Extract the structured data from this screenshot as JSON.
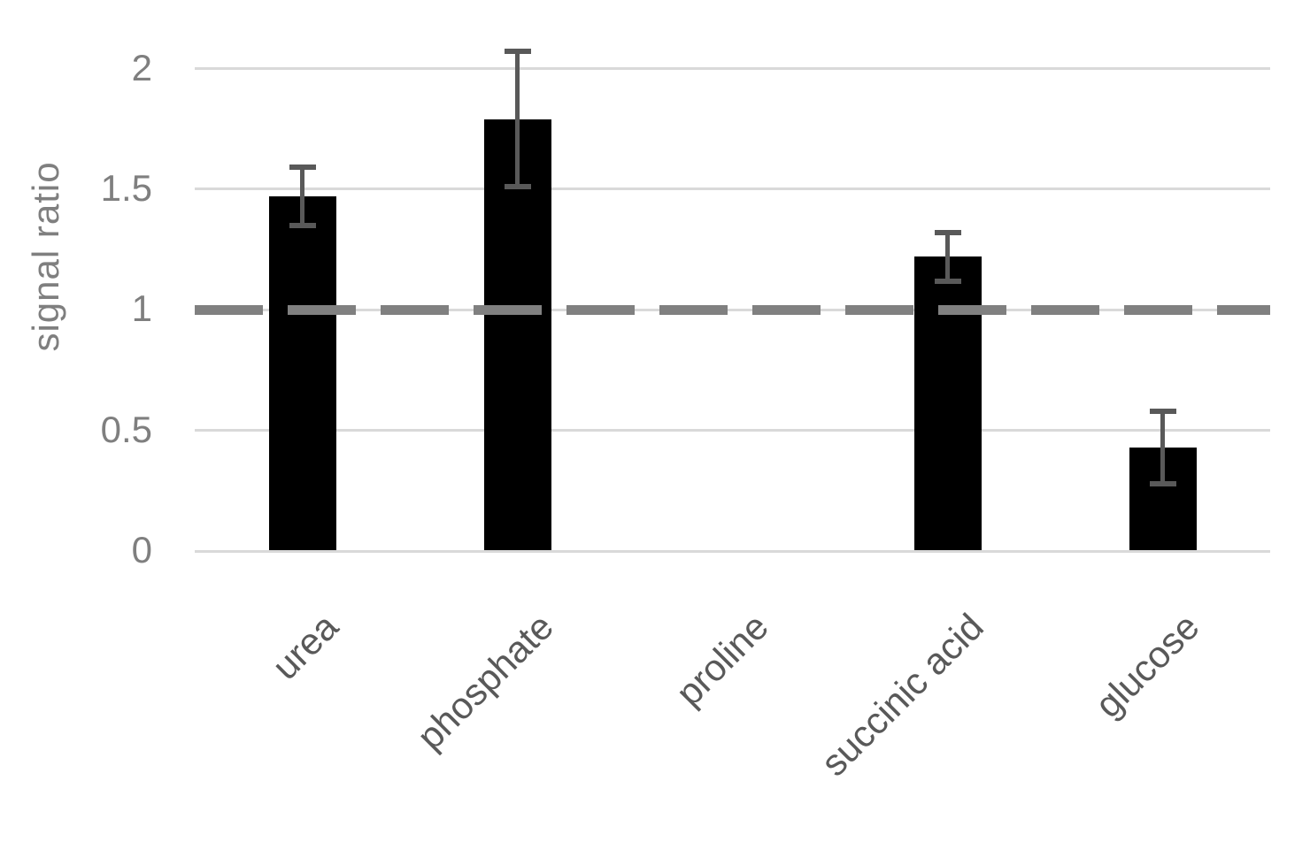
{
  "chart_data": {
    "type": "bar",
    "title": "",
    "xlabel": "",
    "ylabel": "signal ratio",
    "categories": [
      "urea",
      "phosphate",
      "proline",
      "succinic acid",
      "glucose"
    ],
    "series": [
      {
        "name": "signal ratio",
        "values": [
          1.47,
          1.79,
          null,
          1.22,
          0.43
        ],
        "errors": [
          0.12,
          0.28,
          null,
          0.1,
          0.15
        ]
      }
    ],
    "yticks": [
      0,
      0.5,
      1,
      1.5,
      2
    ],
    "ytick_labels": [
      "0",
      "0.5",
      "1",
      "1.5",
      "2"
    ],
    "ylim": [
      0,
      2
    ],
    "reference_line": 1,
    "grid": "horizontal",
    "legend": "none",
    "colors": {
      "bar": "#000000",
      "error_bar": "#595959",
      "gridline": "#d9d9d9",
      "reference_line": "#808080",
      "tick_label": "#7f7f7f",
      "category_label": "#595959",
      "axis_title": "#7f7f7f"
    }
  }
}
